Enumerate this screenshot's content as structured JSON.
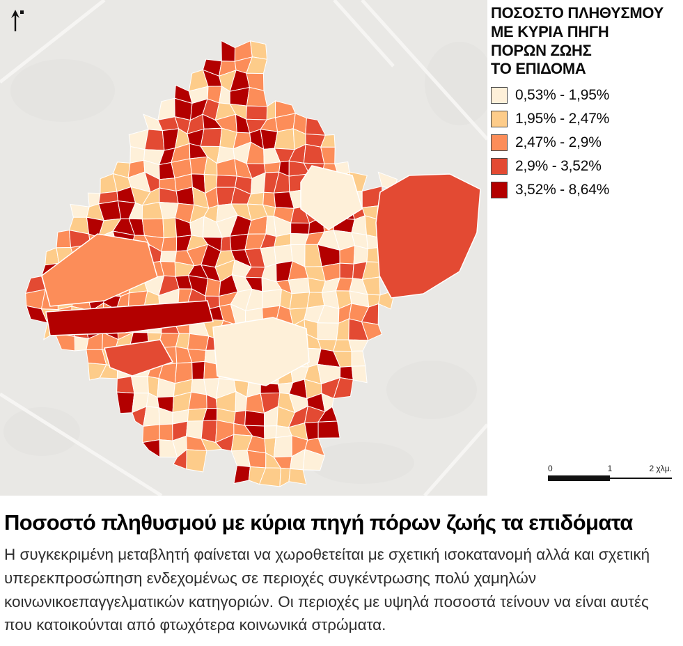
{
  "legend": {
    "title": "ΠΟΣΟΣΤΟ ΠΛΗΘΥΣΜΟΥ\nΜΕ ΚΥΡΙΑ ΠΗΓΗ\nΠΟΡΩΝ ΖΩΗΣ\nΤΟ ΕΠΙΔΟΜΑ",
    "classes": [
      {
        "label": "0,53% - 1,95%",
        "color": "#fef0d9"
      },
      {
        "label": "1,95% - 2,47%",
        "color": "#fdcc8a"
      },
      {
        "label": "2,47% - 2,9%",
        "color": "#fc8d59"
      },
      {
        "label": "2,9% - 3,52%",
        "color": "#e34a33"
      },
      {
        "label": "3,52% - 8,64%",
        "color": "#b30000"
      }
    ]
  },
  "scalebar": {
    "ticks": [
      "0",
      "1",
      "2 χλμ."
    ]
  },
  "map": {
    "background": "#e9e8e5",
    "parcel_stroke": "#ffffff"
  },
  "caption": {
    "title": "Ποσοστό πληθυσμού με κύρια πηγή πόρων ζωής τα επιδόματα",
    "body": "Η συγκεκριμένη μεταβλητή φαίνεται να χωροθετείται με σχετική ισοκατανομή αλλά και σχετική υπερεκπροσώπηση ενδεχομένως σε περιοχές συγκέντρωσης πολύ χαμηλών κοινωνικοεπαγγελματικών κατηγοριών. Οι περιοχές με υψηλά ποσοστά τείνουν να είναι αυτές που κατοικούνται από φτωχότερα κοινωνικά στρώματα."
  }
}
